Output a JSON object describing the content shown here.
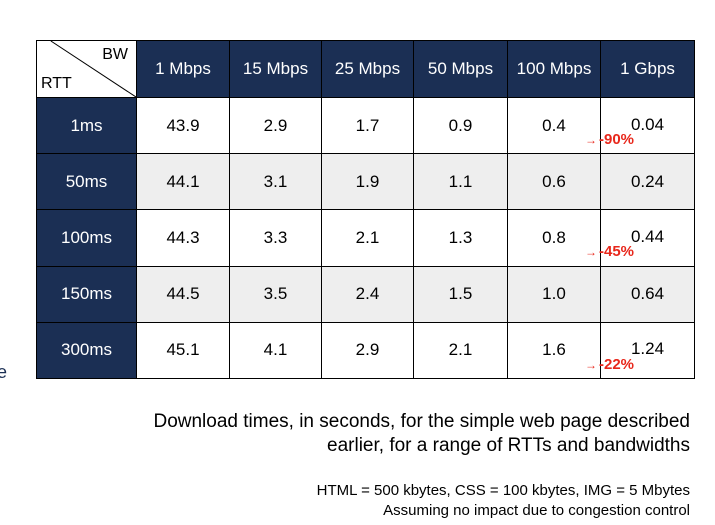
{
  "table": {
    "corner_bw": "BW",
    "corner_rtt": "RTT",
    "columns": [
      "1 Mbps",
      "15 Mbps",
      "25 Mbps",
      "50 Mbps",
      "100 Mbps",
      "1 Gbps"
    ],
    "rows": [
      {
        "rtt": "1ms",
        "values": [
          "43.9",
          "2.9",
          "1.7",
          "0.9",
          "0.4",
          "0.04"
        ],
        "note": "-90%"
      },
      {
        "rtt": "50ms",
        "values": [
          "44.1",
          "3.1",
          "1.9",
          "1.1",
          "0.6",
          "0.24"
        ],
        "note": ""
      },
      {
        "rtt": "100ms",
        "values": [
          "44.3",
          "3.3",
          "2.1",
          "1.3",
          "0.8",
          "0.44"
        ],
        "note": "-45%"
      },
      {
        "rtt": "150ms",
        "values": [
          "44.5",
          "3.5",
          "2.4",
          "1.5",
          "1.0",
          "0.64"
        ],
        "note": ""
      },
      {
        "rtt": "300ms",
        "values": [
          "45.1",
          "4.1",
          "2.9",
          "2.1",
          "1.6",
          "1.24"
        ],
        "note": "-22%"
      }
    ]
  },
  "caption": {
    "line1": "Download times, in seconds, for the simple web page described",
    "line2": "earlier, for a range of RTTs and bandwidths"
  },
  "note": {
    "line1": "HTML = 500 kbytes, CSS = 100 kbytes, IMG = 5 Mbytes",
    "line2": "Assuming no impact due to congestion control"
  },
  "colors": {
    "header_bg": "#1b2f54",
    "header_text": "#ffffff",
    "zebra": "#eeeeee",
    "annotation": "#e8271b"
  },
  "edge_glyph": "e"
}
